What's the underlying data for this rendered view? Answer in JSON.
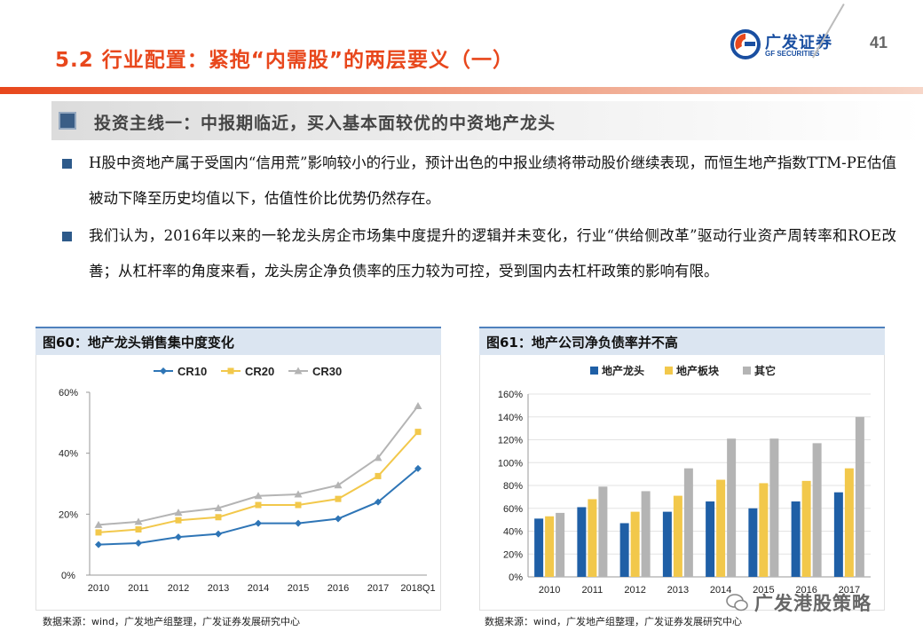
{
  "header": {
    "title": "5.2 行业配置：紧抱“内需股”的两层要义（一）",
    "logo_cn": "广发证券",
    "logo_en": "GF SECURITIES",
    "page_number": "41"
  },
  "subtitle": "投资主线一：中报期临近，买入基本面较优的中资地产龙头",
  "bullets": [
    "H股中资地产属于受国内“信用荒”影响较小的行业，预计出色的中报业绩将带动股价继续表现，而恒生地产指数TTM-PE估值被动下降至历史均值以下，估值性价比优势仍然存在。",
    "我们认为，2016年以来的一轮龙头房企市场集中度提升的逻辑并未变化，行业“供给侧改革”驱动行业资产周转率和ROE改善；从杠杆率的角度来看，龙头房企净负债率的压力较为可控，受到国内去杠杆政策的影响有限。"
  ],
  "figures": [
    {
      "caption": "图60：地产龙头销售集中度变化",
      "source": "数据来源：wind，广发地产组整理，广发证券发展研究中心"
    },
    {
      "caption": "图61：地产公司净负债率并不高",
      "source": "数据来源：wind，广发地产组整理，广发证券发展研究中心"
    }
  ],
  "watermark": "广发港股策略",
  "colors": {
    "accent": "#e8471c",
    "brand_blue": "#1a4fa1",
    "navy": "#1f5fa6",
    "gold": "#f2c84b",
    "gray": "#b4b4b4"
  },
  "chart_data": [
    {
      "type": "line",
      "categories": [
        "2010",
        "2011",
        "2012",
        "2013",
        "2014",
        "2015",
        "2016",
        "2017",
        "2018Q1"
      ],
      "series": [
        {
          "name": "CR10",
          "color": "#2e75b6",
          "values": [
            10,
            10.5,
            12.5,
            13.5,
            17,
            17,
            18.5,
            24,
            35
          ]
        },
        {
          "name": "CR20",
          "color": "#f2c84b",
          "values": [
            14,
            15,
            18,
            19,
            23,
            23,
            25,
            32.5,
            47
          ]
        },
        {
          "name": "CR30",
          "color": "#b4b4b4",
          "values": [
            16.5,
            17.5,
            20.5,
            22,
            26,
            26.5,
            29.5,
            38.5,
            55.5
          ]
        }
      ],
      "yticks": [
        "0%",
        "20%",
        "40%",
        "60%"
      ],
      "ylim": [
        0,
        60
      ],
      "legend": "top"
    },
    {
      "type": "bar",
      "categories": [
        "2010",
        "2011",
        "2012",
        "2013",
        "2014",
        "2015",
        "2016",
        "2017"
      ],
      "series": [
        {
          "name": "地产龙头",
          "color": "#1f5fa6",
          "values": [
            51,
            61,
            47,
            57,
            66,
            60,
            66,
            74
          ]
        },
        {
          "name": "地产板块",
          "color": "#f2c84b",
          "values": [
            53,
            68,
            57,
            71,
            85,
            82,
            84,
            95
          ]
        },
        {
          "name": "其它",
          "color": "#b4b4b4",
          "values": [
            56,
            79,
            75,
            95,
            121,
            121,
            117,
            140
          ]
        }
      ],
      "yticks": [
        "0%",
        "20%",
        "40%",
        "60%",
        "80%",
        "100%",
        "120%",
        "140%",
        "160%"
      ],
      "ylim": [
        0,
        160
      ],
      "legend": "top"
    }
  ]
}
